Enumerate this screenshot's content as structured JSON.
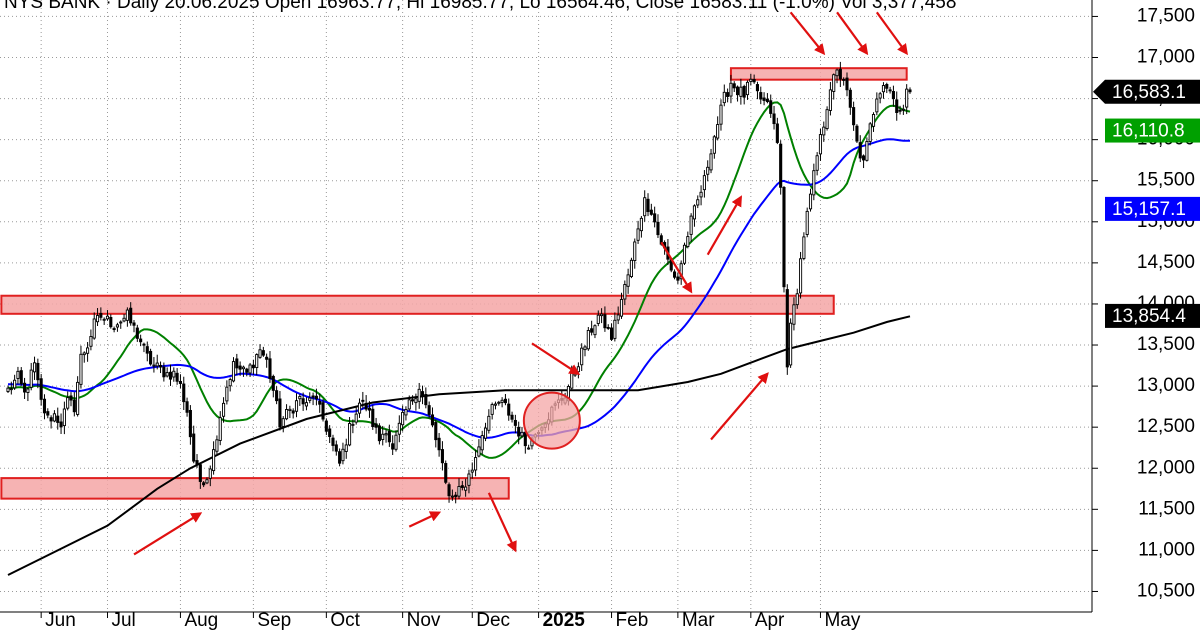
{
  "chart_data": {
    "type": "candlestick",
    "title": "NYS BANK · Daily 20.06.2025 Open 16963.77, Hi 16985.77, Lo 16564.46, Close 16583.11 (-1.0%) Vol 3,377,458",
    "y_axis": {
      "range": [
        10250,
        17700
      ],
      "ticks": [
        {
          "value": 17500,
          "label": "17,500"
        },
        {
          "value": 17000,
          "label": "17,000"
        },
        {
          "value": 16500,
          "label": "16,500"
        },
        {
          "value": 16000,
          "label": "16,000"
        },
        {
          "value": 15500,
          "label": "15,500"
        },
        {
          "value": 15000,
          "label": "15,000"
        },
        {
          "value": 14500,
          "label": "14,500"
        },
        {
          "value": 14000,
          "label": "14,000"
        },
        {
          "value": 13500,
          "label": "13,500"
        },
        {
          "value": 13000,
          "label": "13,000"
        },
        {
          "value": 12500,
          "label": "12,500"
        },
        {
          "value": 12000,
          "label": "12,000"
        },
        {
          "value": 11500,
          "label": "11,500"
        },
        {
          "value": 11000,
          "label": "11,000"
        },
        {
          "value": 10500,
          "label": "10,500"
        }
      ],
      "side": "right"
    },
    "x_axis": {
      "range": [
        0,
        272
      ],
      "months": [
        {
          "label": "Jun",
          "index": 10,
          "bold": false
        },
        {
          "label": "Jul",
          "index": 30,
          "bold": false
        },
        {
          "label": "Aug",
          "index": 52,
          "bold": false
        },
        {
          "label": "Sep",
          "index": 74,
          "bold": false
        },
        {
          "label": "Oct",
          "index": 96,
          "bold": false
        },
        {
          "label": "Nov",
          "index": 119,
          "bold": false
        },
        {
          "label": "Dec",
          "index": 140,
          "bold": false
        },
        {
          "label": "2025",
          "index": 160,
          "bold": true
        },
        {
          "label": "Feb",
          "index": 182,
          "bold": false
        },
        {
          "label": "Mar",
          "index": 202,
          "bold": false
        },
        {
          "label": "Apr",
          "index": 224,
          "bold": false
        },
        {
          "label": "May",
          "index": 245,
          "bold": false
        }
      ]
    },
    "grid": true,
    "price_anchors": [
      [
        0,
        12950
      ],
      [
        3,
        13100
      ],
      [
        5,
        12900
      ],
      [
        8,
        13250
      ],
      [
        10,
        12800
      ],
      [
        12,
        12600
      ],
      [
        14,
        12650
      ],
      [
        16,
        12550
      ],
      [
        18,
        12800
      ],
      [
        20,
        12750
      ],
      [
        22,
        13350
      ],
      [
        24,
        13500
      ],
      [
        26,
        13750
      ],
      [
        28,
        13850
      ],
      [
        30,
        13800
      ],
      [
        32,
        13750
      ],
      [
        34,
        13800
      ],
      [
        36,
        13850
      ],
      [
        38,
        13700
      ],
      [
        40,
        13550
      ],
      [
        42,
        13350
      ],
      [
        44,
        13250
      ],
      [
        46,
        13200
      ],
      [
        48,
        13150
      ],
      [
        50,
        13150
      ],
      [
        52,
        13000
      ],
      [
        54,
        12700
      ],
      [
        56,
        12100
      ],
      [
        58,
        11850
      ],
      [
        60,
        11900
      ],
      [
        62,
        12200
      ],
      [
        64,
        12650
      ],
      [
        66,
        13000
      ],
      [
        68,
        13250
      ],
      [
        70,
        13200
      ],
      [
        72,
        13150
      ],
      [
        74,
        13300
      ],
      [
        76,
        13450
      ],
      [
        78,
        13300
      ],
      [
        80,
        12950
      ],
      [
        82,
        12550
      ],
      [
        84,
        12650
      ],
      [
        86,
        12750
      ],
      [
        88,
        12850
      ],
      [
        90,
        12750
      ],
      [
        92,
        12900
      ],
      [
        94,
        12700
      ],
      [
        96,
        12500
      ],
      [
        98,
        12250
      ],
      [
        100,
        12050
      ],
      [
        102,
        12350
      ],
      [
        104,
        12600
      ],
      [
        106,
        12800
      ],
      [
        108,
        12750
      ],
      [
        110,
        12550
      ],
      [
        112,
        12350
      ],
      [
        114,
        12500
      ],
      [
        116,
        12200
      ],
      [
        118,
        12500
      ],
      [
        120,
        12700
      ],
      [
        122,
        12850
      ],
      [
        124,
        13000
      ],
      [
        126,
        12750
      ],
      [
        128,
        12500
      ],
      [
        130,
        12200
      ],
      [
        132,
        11800
      ],
      [
        134,
        11650
      ],
      [
        136,
        11750
      ],
      [
        138,
        11800
      ],
      [
        140,
        12000
      ],
      [
        142,
        12300
      ],
      [
        144,
        12550
      ],
      [
        146,
        12700
      ],
      [
        148,
        12800
      ],
      [
        150,
        12750
      ],
      [
        152,
        12600
      ],
      [
        154,
        12450
      ],
      [
        156,
        12300
      ],
      [
        158,
        12350
      ],
      [
        160,
        12500
      ],
      [
        162,
        12600
      ],
      [
        164,
        12700
      ],
      [
        166,
        12800
      ],
      [
        168,
        12900
      ],
      [
        170,
        13100
      ],
      [
        172,
        13300
      ],
      [
        174,
        13500
      ],
      [
        176,
        13700
      ],
      [
        178,
        13850
      ],
      [
        180,
        13750
      ],
      [
        182,
        13600
      ],
      [
        184,
        13900
      ],
      [
        186,
        14200
      ],
      [
        188,
        14500
      ],
      [
        190,
        14950
      ],
      [
        192,
        15250
      ],
      [
        194,
        15150
      ],
      [
        196,
        14850
      ],
      [
        198,
        14650
      ],
      [
        200,
        14400
      ],
      [
        202,
        14300
      ],
      [
        204,
        14700
      ],
      [
        206,
        15000
      ],
      [
        208,
        15250
      ],
      [
        210,
        15500
      ],
      [
        212,
        15900
      ],
      [
        214,
        16200
      ],
      [
        216,
        16500
      ],
      [
        218,
        16700
      ],
      [
        220,
        16600
      ],
      [
        222,
        16550
      ],
      [
        224,
        16700
      ],
      [
        226,
        16550
      ],
      [
        228,
        16450
      ],
      [
        230,
        16350
      ],
      [
        232,
        15950
      ],
      [
        233,
        15400
      ],
      [
        234,
        14200
      ],
      [
        235,
        13300
      ],
      [
        236,
        13700
      ],
      [
        238,
        14200
      ],
      [
        240,
        14850
      ],
      [
        242,
        15300
      ],
      [
        244,
        15800
      ],
      [
        246,
        16200
      ],
      [
        248,
        16650
      ],
      [
        250,
        16800
      ],
      [
        252,
        16750
      ],
      [
        254,
        16350
      ],
      [
        256,
        15950
      ],
      [
        258,
        15700
      ],
      [
        260,
        16150
      ],
      [
        262,
        16550
      ],
      [
        264,
        16700
      ],
      [
        266,
        16600
      ],
      [
        268,
        16400
      ],
      [
        270,
        16350
      ],
      [
        271,
        16550
      ],
      [
        272,
        16583
      ]
    ],
    "series": [
      {
        "name": "",
        "color": "#008000",
        "ma_period": 20
      },
      {
        "name": "",
        "color": "#0000ff",
        "ma_period": 50
      },
      {
        "name": "",
        "color": "#000000",
        "points": [
          [
            0,
            10700
          ],
          [
            15,
            11000
          ],
          [
            30,
            11300
          ],
          [
            45,
            11750
          ],
          [
            55,
            12000
          ],
          [
            70,
            12300
          ],
          [
            90,
            12600
          ],
          [
            110,
            12800
          ],
          [
            130,
            12900
          ],
          [
            150,
            12950
          ],
          [
            170,
            12950
          ],
          [
            190,
            12950
          ],
          [
            205,
            13050
          ],
          [
            215,
            13150
          ],
          [
            225,
            13300
          ],
          [
            235,
            13450
          ],
          [
            245,
            13550
          ],
          [
            255,
            13650
          ],
          [
            265,
            13780
          ],
          [
            272,
            13850
          ]
        ]
      }
    ],
    "price_labels": [
      {
        "value": 16583.11,
        "label": "16,583.1",
        "bg": "#000000",
        "shape": "arrow"
      },
      {
        "value": 16110.8,
        "label": "16,110.8",
        "bg": "#00a000",
        "shape": "rect"
      },
      {
        "value": 15157.1,
        "label": "15,157.1",
        "bg": "#0000ff",
        "shape": "rect"
      },
      {
        "value": 13854.4,
        "label": "13,854.4",
        "bg": "#000000",
        "shape": "rect"
      }
    ],
    "zones": [
      {
        "i0": 218,
        "i1": 271,
        "y0": 16730,
        "y1": 16870
      },
      {
        "i0": -2,
        "i1": 249,
        "y0": 13880,
        "y1": 14100
      },
      {
        "i0": -2,
        "i1": 151,
        "y0": 11630,
        "y1": 11880
      }
    ],
    "circles": [
      {
        "i": 164,
        "y": 12580,
        "r": 28
      }
    ],
    "annotation_arrows": [
      {
        "from": [
          38,
          10950
        ],
        "to": [
          58,
          11450
        ]
      },
      {
        "from": [
          121,
          11290
        ],
        "to": [
          130,
          11460
        ]
      },
      {
        "from": [
          145,
          11700
        ],
        "to": [
          153,
          11000
        ]
      },
      {
        "from": [
          158,
          13520
        ],
        "to": [
          172,
          13150
        ]
      },
      {
        "from": [
          197,
          14750
        ],
        "to": [
          206,
          14150
        ]
      },
      {
        "from": [
          211,
          14600
        ],
        "to": [
          221,
          15300
        ]
      },
      {
        "from": [
          212,
          12350
        ],
        "to": [
          229,
          13150
        ]
      },
      {
        "from": [
          236,
          17550
        ],
        "to": [
          246,
          17050
        ]
      },
      {
        "from": [
          250,
          17550
        ],
        "to": [
          259,
          17050
        ]
      },
      {
        "from": [
          262,
          17550
        ],
        "to": [
          271,
          17050
        ]
      }
    ],
    "colors": {
      "candle": "#000000",
      "zone_fill": "#f4a6a6",
      "zone_stroke": "#e02020",
      "arrow": "#e01010",
      "grid": "#9a9a9a"
    }
  }
}
